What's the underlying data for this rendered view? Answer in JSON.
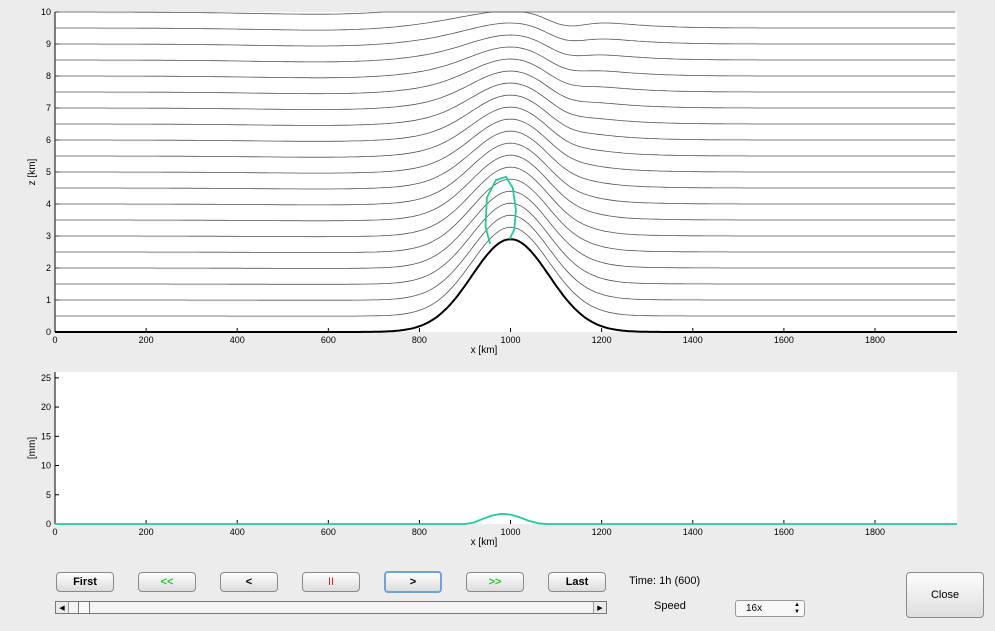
{
  "colors": {
    "streamline": "#555555",
    "terrain": "#000000",
    "cloud": "#22c99a",
    "precip": "#22c99a",
    "play_accent": "#22cc22",
    "pause_accent": "#dd2222"
  },
  "chart_data": [
    {
      "type": "line",
      "title": "",
      "xlabel": "x [km]",
      "ylabel": "z [km]",
      "xlim": [
        0,
        1980
      ],
      "ylim": [
        0,
        10
      ],
      "xticks": [
        "0",
        "200",
        "400",
        "600",
        "800",
        "1000",
        "1200",
        "1400",
        "1600",
        "1800"
      ],
      "yticks": [
        "0",
        "1",
        "2",
        "3",
        "4",
        "5",
        "6",
        "7",
        "8",
        "9",
        "10"
      ],
      "grid": false,
      "terrain": {
        "center_x": 1000,
        "height_km": 2.9,
        "half_width_km": 120
      },
      "streamline_levels": [
        0.5,
        1.0,
        1.5,
        2.0,
        2.5,
        3.0,
        3.5,
        4.0,
        4.5,
        5.0,
        5.5,
        6.0,
        6.5,
        7.0,
        7.5,
        8.0,
        8.5,
        9.0,
        9.5,
        10.0
      ],
      "cloud_outline": [
        [
          955,
          2.75
        ],
        [
          945,
          3.3
        ],
        [
          948,
          4.2
        ],
        [
          968,
          4.75
        ],
        [
          990,
          4.85
        ],
        [
          1005,
          4.5
        ],
        [
          1012,
          3.8
        ],
        [
          1008,
          3.2
        ],
        [
          998,
          2.9
        ]
      ]
    },
    {
      "type": "line",
      "title": "",
      "xlabel": "x [km]",
      "ylabel": "[mm]",
      "xlim": [
        0,
        1980
      ],
      "ylim": [
        0,
        26
      ],
      "xticks": [
        "0",
        "200",
        "400",
        "600",
        "800",
        "1000",
        "1200",
        "1400",
        "1600",
        "1800"
      ],
      "yticks": [
        "0",
        "5",
        "10",
        "15",
        "20",
        "25"
      ],
      "grid": false,
      "series": [
        {
          "x": [
            0,
            900,
            920,
            940,
            960,
            980,
            1000,
            1020,
            1040,
            1060,
            1080,
            1980
          ],
          "values": [
            0,
            0,
            0.25,
            0.9,
            1.45,
            1.75,
            1.6,
            1.15,
            0.55,
            0.12,
            0,
            0
          ]
        }
      ]
    }
  ],
  "controls": {
    "first": "First",
    "rewind": "<<",
    "step_back": "<",
    "pause": "II",
    "step_forward": ">",
    "fast_forward": ">>",
    "last": "Last",
    "close": "Close",
    "time_text": "Time: 1h (600)",
    "speed_label": "Speed",
    "speed_value": "16x",
    "slider_position": 0.02
  }
}
